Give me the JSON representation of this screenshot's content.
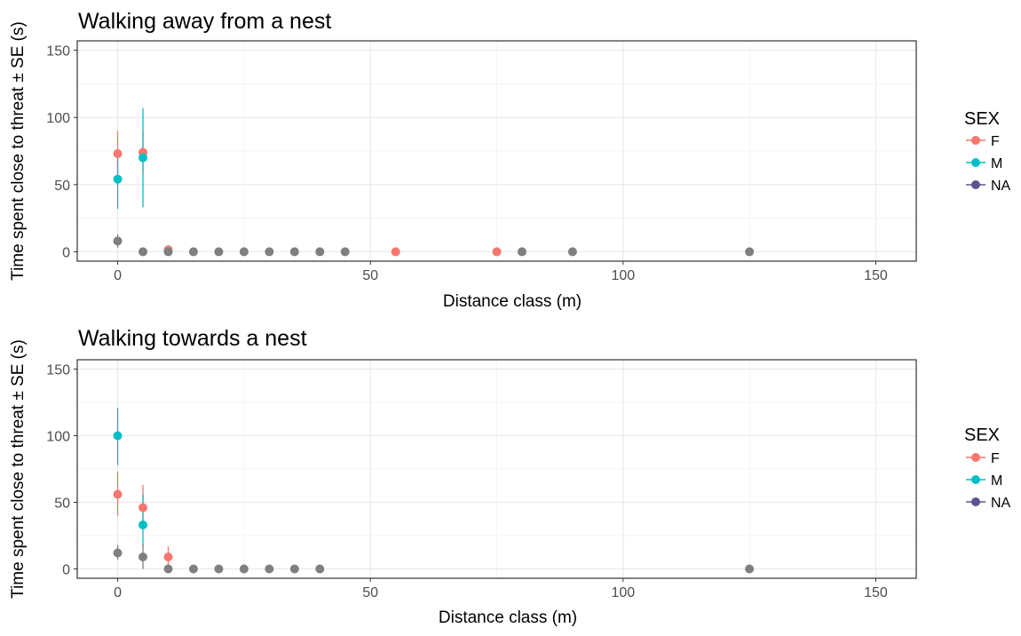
{
  "colors": {
    "F": "#F8766D",
    "M": "#00BFC4",
    "NA": "#7F7F7F",
    "NA_legend": "#5E5390"
  },
  "y_axis_title": "Time spent close to threat ± SE (s)",
  "chart_data": [
    {
      "type": "scatter",
      "title": "Walking away from a nest",
      "xlabel": "Distance class (m)",
      "ylabel": "Time spent close to threat ± SE (s)",
      "xlim": [
        -8,
        158
      ],
      "ylim": [
        -7,
        157
      ],
      "xticks": [
        0,
        50,
        100,
        150
      ],
      "yticks": [
        0,
        50,
        100,
        150
      ],
      "grid": true,
      "legend": {
        "title": "SEX",
        "position": "right",
        "entries": [
          "F",
          "M",
          "NA"
        ]
      },
      "series": [
        {
          "name": "F",
          "points": [
            {
              "x": 0,
              "y": 73,
              "lo": 57,
              "hi": 90
            },
            {
              "x": 5,
              "y": 74,
              "lo": 58,
              "hi": 90
            },
            {
              "x": 10,
              "y": 1.5
            },
            {
              "x": 55,
              "y": 0
            },
            {
              "x": 75,
              "y": 0
            }
          ]
        },
        {
          "name": "M",
          "points": [
            {
              "x": 0,
              "y": 54,
              "lo": 32,
              "hi": 73
            },
            {
              "x": 5,
              "y": 70,
              "lo": 33,
              "hi": 107
            }
          ]
        },
        {
          "name": "NA",
          "points": [
            {
              "x": 0,
              "y": 8,
              "lo": 3,
              "hi": 13
            },
            {
              "x": 5,
              "y": 0
            },
            {
              "x": 10,
              "y": 0
            },
            {
              "x": 15,
              "y": 0
            },
            {
              "x": 20,
              "y": 0
            },
            {
              "x": 25,
              "y": 0
            },
            {
              "x": 30,
              "y": 0
            },
            {
              "x": 35,
              "y": 0
            },
            {
              "x": 40,
              "y": 0
            },
            {
              "x": 45,
              "y": 0
            },
            {
              "x": 80,
              "y": 0
            },
            {
              "x": 90,
              "y": 0
            },
            {
              "x": 125,
              "y": 0
            }
          ]
        }
      ]
    },
    {
      "type": "scatter",
      "title": "Walking towards a nest",
      "xlabel": "Distance class (m)",
      "ylabel": "Time spent close to threat ± SE (s)",
      "xlim": [
        -8,
        158
      ],
      "ylim": [
        -7,
        157
      ],
      "xticks": [
        0,
        50,
        100,
        150
      ],
      "yticks": [
        0,
        50,
        100,
        150
      ],
      "grid": true,
      "legend": {
        "title": "SEX",
        "position": "right",
        "entries": [
          "F",
          "M",
          "NA"
        ]
      },
      "series": [
        {
          "name": "F",
          "points": [
            {
              "x": 0,
              "y": 56,
              "lo": 40,
              "hi": 73
            },
            {
              "x": 5,
              "y": 46,
              "lo": 30,
              "hi": 63
            },
            {
              "x": 10,
              "y": 9,
              "lo": 2,
              "hi": 17
            }
          ]
        },
        {
          "name": "M",
          "points": [
            {
              "x": 0,
              "y": 100,
              "lo": 78,
              "hi": 121
            },
            {
              "x": 5,
              "y": 33,
              "lo": 17,
              "hi": 56
            }
          ]
        },
        {
          "name": "NA",
          "points": [
            {
              "x": 0,
              "y": 12,
              "lo": 7,
              "hi": 18
            },
            {
              "x": 5,
              "y": 9,
              "lo": 0,
              "hi": 19
            },
            {
              "x": 10,
              "y": 0
            },
            {
              "x": 15,
              "y": 0
            },
            {
              "x": 20,
              "y": 0
            },
            {
              "x": 25,
              "y": 0
            },
            {
              "x": 30,
              "y": 0
            },
            {
              "x": 35,
              "y": 0
            },
            {
              "x": 40,
              "y": 0
            },
            {
              "x": 125,
              "y": 0
            }
          ]
        }
      ]
    }
  ]
}
